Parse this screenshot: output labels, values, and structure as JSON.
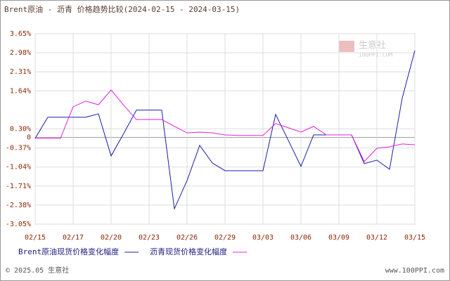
{
  "chart_data": {
    "type": "line",
    "title": "Brent原油 - 沥青 价格趋势比较(2024-02-15 - 2024-03-15)",
    "categories": [
      "02/15",
      null,
      null,
      "02/17",
      null,
      null,
      "02/20",
      null,
      null,
      "02/23",
      null,
      null,
      "02/26",
      null,
      null,
      "02/29",
      null,
      null,
      "03/03",
      null,
      null,
      "03/06",
      null,
      null,
      "03/09",
      null,
      null,
      "03/12",
      null,
      null,
      "03/15"
    ],
    "series": [
      {
        "name": "Brent原油现货价格变化幅度",
        "color": "#1c1ca8",
        "values": [
          -0.03,
          0.71,
          0.71,
          0.71,
          0.71,
          0.83,
          -0.65,
          0.14,
          0.96,
          0.96,
          0.96,
          -2.51,
          -1.52,
          -0.28,
          -0.9,
          -1.17,
          -1.17,
          -1.17,
          -1.17,
          0.81,
          -0.1,
          -1.02,
          0.09,
          0.09,
          0.09,
          0.09,
          -0.92,
          -0.8,
          -1.12,
          1.38,
          3.06
        ]
      },
      {
        "name": "沥青现货价格变化幅度",
        "color": "#e020e0",
        "values": [
          -0.03,
          -0.03,
          -0.03,
          1.08,
          1.28,
          1.15,
          1.67,
          1.13,
          0.63,
          0.63,
          0.63,
          0.39,
          0.16,
          0.19,
          0.16,
          0.09,
          0.07,
          0.07,
          0.07,
          0.49,
          0.34,
          0.19,
          0.39,
          0.09,
          0.09,
          0.09,
          -0.85,
          -0.38,
          -0.33,
          -0.23,
          -0.26
        ]
      }
    ],
    "ylim": [
      -3.05,
      3.65
    ],
    "yticks": [
      {
        "value": 3.65,
        "label": "3.65%"
      },
      {
        "value": 2.98,
        "label": "2.98%"
      },
      {
        "value": 2.31,
        "label": "2.31%"
      },
      {
        "value": 1.64,
        "label": "1.64%"
      },
      0,
      {
        "value": 0.3,
        "label": "0.30%"
      },
      {
        "value": -0.37,
        "label": "-0.37%"
      },
      {
        "value": -1.04,
        "label": "-1.04%"
      },
      {
        "value": -1.71,
        "label": "-1.71%"
      },
      {
        "value": -2.38,
        "label": "-2.38%"
      },
      {
        "value": -3.05,
        "label": "-3.05%"
      }
    ],
    "grid": true,
    "watermark": {
      "name": "生意社",
      "site": "100PPI.COM"
    },
    "footer": {
      "left": "© 2025.05 生意社",
      "right": "www.100PPI.com"
    }
  }
}
